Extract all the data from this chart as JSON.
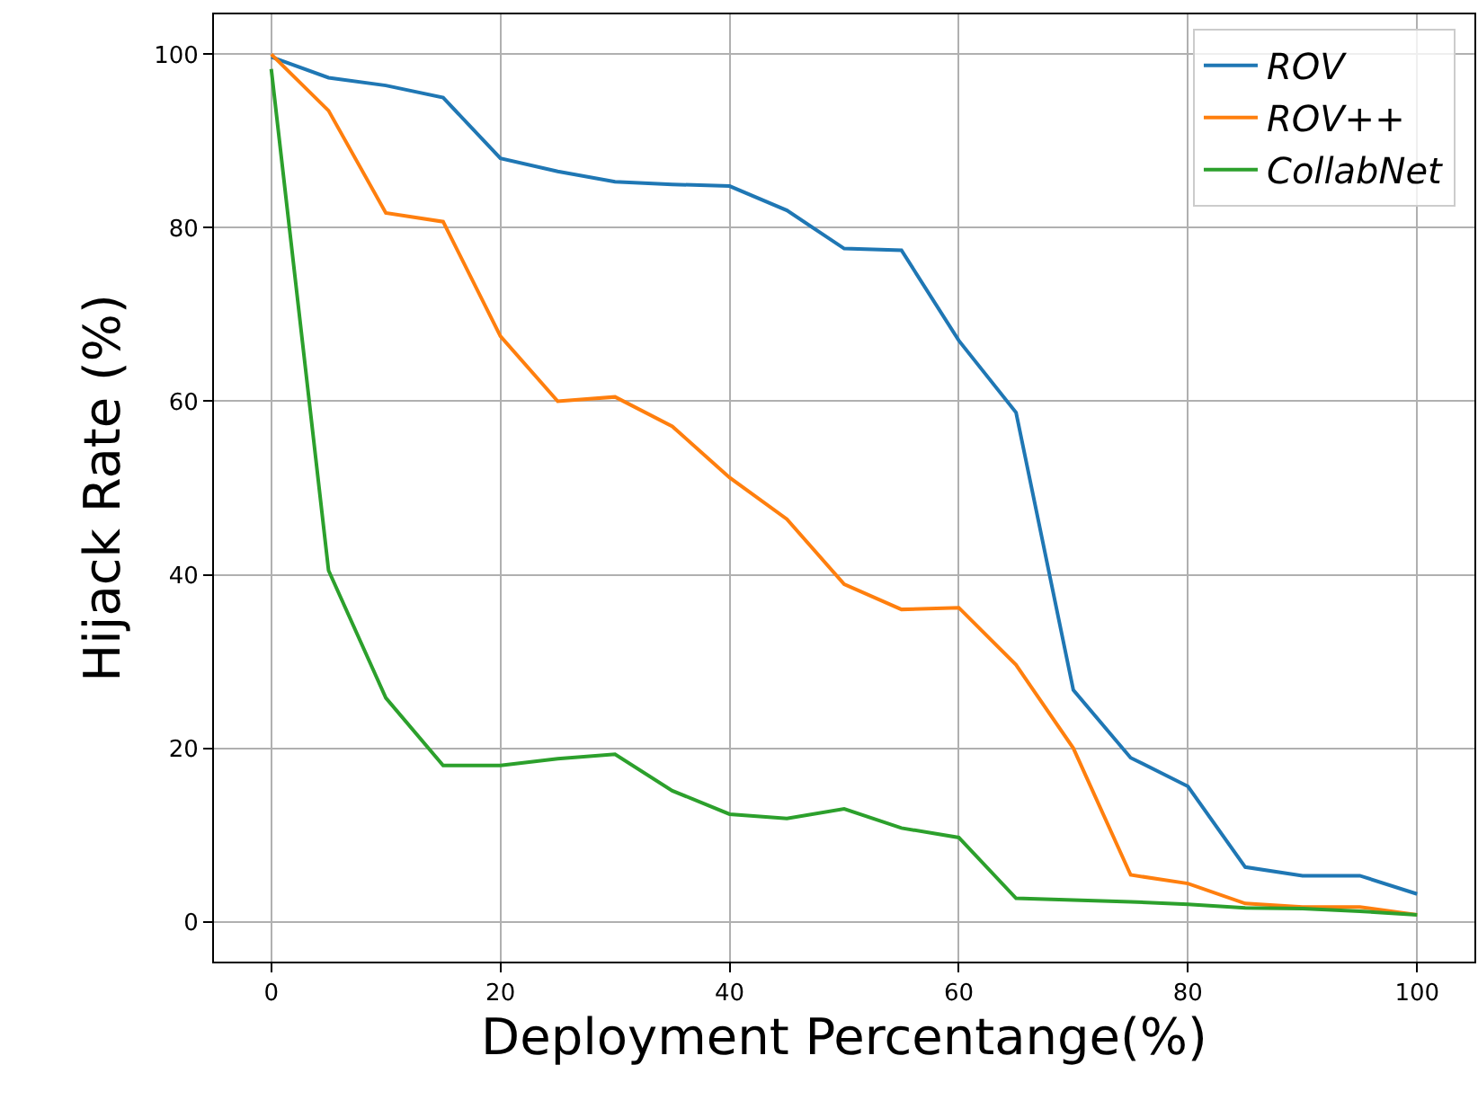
{
  "chart_data": {
    "type": "line",
    "xlabel": "Deployment Percentange(%)",
    "ylabel": "Hijack Rate (%)",
    "x": [
      0,
      5,
      10,
      15,
      20,
      25,
      30,
      35,
      40,
      45,
      50,
      55,
      60,
      65,
      70,
      75,
      80,
      85,
      90,
      95,
      100
    ],
    "series": [
      {
        "name": "ROV",
        "color": "#1f77b4",
        "values": [
          99.7,
          97.3,
          96.4,
          95,
          88,
          86.5,
          85.3,
          85,
          84.8,
          82,
          77.6,
          77.4,
          67,
          58.7,
          26.7,
          18.9,
          15.6,
          6.3,
          5.3,
          5.3,
          3.2
        ]
      },
      {
        "name": "ROV++",
        "color": "#ff7f0e",
        "values": [
          100,
          93.5,
          81.7,
          80.7,
          67.5,
          60,
          60.5,
          57.1,
          51.2,
          46.4,
          38.9,
          36,
          36.2,
          29.6,
          20,
          5.4,
          4.4,
          2.1,
          1.7,
          1.7,
          0.8
        ]
      },
      {
        "name": "CollabNet",
        "color": "#2ca02c",
        "values": [
          98.3,
          40.5,
          25.8,
          18,
          18,
          18.8,
          19.3,
          15.1,
          12.4,
          11.9,
          13,
          10.8,
          9.7,
          2.7,
          2.5,
          2.3,
          2,
          1.6,
          1.5,
          1.2,
          0.8
        ]
      }
    ],
    "xlim": [
      -5,
      105
    ],
    "ylim": [
      -4.6,
      104.6
    ],
    "xticks": [
      0,
      20,
      40,
      60,
      80,
      100
    ],
    "yticks": [
      0,
      20,
      40,
      60,
      80,
      100
    ],
    "grid": true,
    "legend": "top right",
    "line_style": "solid"
  }
}
